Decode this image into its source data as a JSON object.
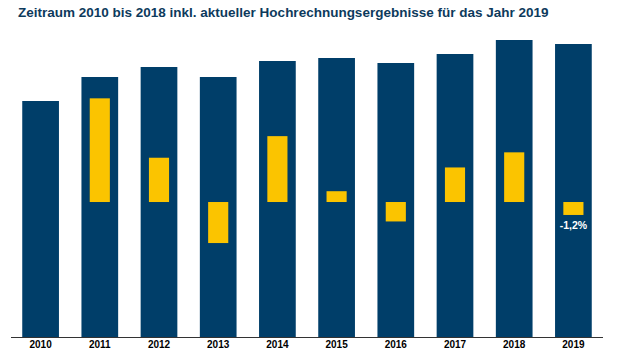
{
  "chart_data": {
    "type": "bar",
    "title": "Zeitraum 2010 bis 2018 inkl. aktueller Hochrechnungsergebnisse für das Jahr 2019",
    "categories": [
      "2010",
      "2011",
      "2012",
      "2013",
      "2014",
      "2015",
      "2016",
      "2017",
      "2018",
      "2019"
    ],
    "ylim": [
      0,
      300
    ],
    "y2lim": [
      -12.5,
      15.28
    ],
    "tick_labels": "x",
    "grid": false,
    "series": [
      {
        "type": "bar",
        "color": "#003e69",
        "values": [
          236,
          260,
          270,
          260,
          276,
          279,
          274,
          283,
          297,
          293
        ]
      },
      {
        "type": "bar",
        "color": "#fbc400",
        "axis": "y2",
        "data_labels": true,
        "values": [
          null,
          9.6,
          4.1,
          -3.8,
          6.1,
          1.0,
          -1.8,
          3.2,
          4.6,
          -1.2
        ],
        "value_labels": [
          null,
          null,
          null,
          null,
          null,
          null,
          null,
          null,
          null,
          "-1,2%"
        ]
      }
    ]
  }
}
